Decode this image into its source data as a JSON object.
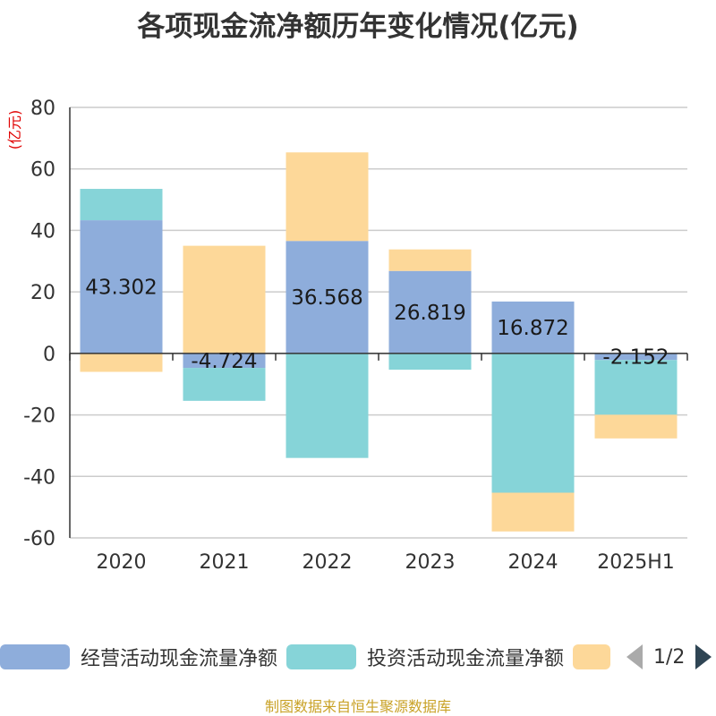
{
  "chart_data": {
    "type": "bar",
    "stacked": true,
    "title": "各项现金流净额历年变化情况(亿元)",
    "ylabel": "(亿元)",
    "ylim": [
      -60,
      80
    ],
    "yticks": [
      80,
      60,
      40,
      20,
      0,
      -20,
      -40,
      -60
    ],
    "grid": true,
    "categories": [
      "2020",
      "2021",
      "2022",
      "2023",
      "2024",
      "2025H1"
    ],
    "series": [
      {
        "name": "经营活动现金流量净额",
        "color": "#8eaddb",
        "values": [
          43.302,
          -4.724,
          36.568,
          26.819,
          16.872,
          -2.152
        ],
        "labels": [
          "43.302",
          "-4.724",
          "36.568",
          "26.819",
          "16.872",
          "-2.152"
        ]
      },
      {
        "name": "投资活动现金流量净额",
        "color": "#86d4d8",
        "values": [
          10.2,
          -10.7,
          -34.0,
          -5.3,
          -45.3,
          -17.8
        ]
      },
      {
        "name": "",
        "color": "#fdd899",
        "values": [
          -6.0,
          35.0,
          28.8,
          7.0,
          -12.6,
          -7.7
        ]
      }
    ],
    "legend_position": "bottom",
    "source": "制图数据来自恒生聚源数据库"
  },
  "legend": {
    "page": "1/2"
  }
}
